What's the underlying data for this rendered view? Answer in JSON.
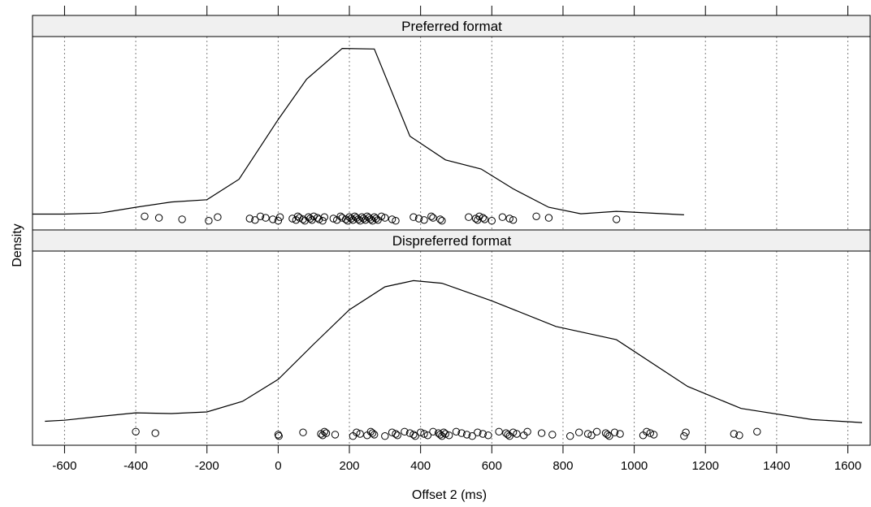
{
  "chart_data": {
    "type": "density",
    "xlabel": "Offset 2 (ms)",
    "ylabel": "Density",
    "xlim": [
      -690,
      1665
    ],
    "x_ticks": [
      -600,
      -400,
      -200,
      0,
      200,
      400,
      600,
      800,
      1000,
      1200,
      1400,
      1600
    ],
    "x_tick_labels": [
      "-600",
      "-400",
      "-200",
      "0",
      "200",
      "400",
      "600",
      "800",
      "1000",
      "1200",
      "1400",
      "1600"
    ],
    "grid": "vertical dotted at x ticks",
    "line_color": "#000000",
    "point_style": "open circle",
    "panels": [
      {
        "name": "Preferred format",
        "ylim": [
          0,
          1
        ],
        "density_curve": [
          [
            -690,
            0.016
          ],
          [
            -600,
            0.016
          ],
          [
            -500,
            0.022
          ],
          [
            -400,
            0.055
          ],
          [
            -300,
            0.085
          ],
          [
            -200,
            0.098
          ],
          [
            -110,
            0.215
          ],
          [
            0,
            0.555
          ],
          [
            80,
            0.785
          ],
          [
            180,
            0.96
          ],
          [
            270,
            0.957
          ],
          [
            370,
            0.46
          ],
          [
            470,
            0.325
          ],
          [
            570,
            0.273
          ],
          [
            660,
            0.16
          ],
          [
            760,
            0.055
          ],
          [
            850,
            0.018
          ],
          [
            950,
            0.032
          ],
          [
            1140,
            0.012
          ]
        ],
        "observations": [
          -375,
          -335,
          -270,
          -195,
          -170,
          -80,
          -65,
          -50,
          -35,
          -15,
          0,
          5,
          40,
          50,
          55,
          60,
          70,
          75,
          85,
          90,
          95,
          100,
          110,
          115,
          125,
          130,
          155,
          165,
          175,
          180,
          190,
          195,
          200,
          205,
          210,
          215,
          220,
          225,
          230,
          235,
          240,
          245,
          250,
          255,
          260,
          265,
          270,
          275,
          280,
          290,
          300,
          320,
          330,
          380,
          395,
          410,
          430,
          435,
          455,
          460,
          535,
          555,
          560,
          565,
          575,
          580,
          600,
          630,
          650,
          660,
          725,
          760,
          950
        ]
      },
      {
        "name": "Dispreferred format",
        "ylim": [
          0,
          1
        ],
        "density_curve": [
          [
            -655,
            0.062
          ],
          [
            -600,
            0.068
          ],
          [
            -500,
            0.09
          ],
          [
            -400,
            0.11
          ],
          [
            -300,
            0.106
          ],
          [
            -200,
            0.115
          ],
          [
            -100,
            0.175
          ],
          [
            0,
            0.3
          ],
          [
            100,
            0.5
          ],
          [
            200,
            0.695
          ],
          [
            300,
            0.825
          ],
          [
            380,
            0.86
          ],
          [
            460,
            0.845
          ],
          [
            600,
            0.745
          ],
          [
            780,
            0.6
          ],
          [
            950,
            0.525
          ],
          [
            1150,
            0.26
          ],
          [
            1300,
            0.135
          ],
          [
            1500,
            0.072
          ],
          [
            1640,
            0.055
          ]
        ],
        "observations": [
          -400,
          -345,
          0,
          2,
          70,
          120,
          125,
          130,
          135,
          160,
          210,
          220,
          230,
          250,
          260,
          265,
          270,
          300,
          320,
          330,
          335,
          355,
          370,
          380,
          385,
          400,
          410,
          420,
          435,
          450,
          455,
          460,
          465,
          470,
          480,
          500,
          515,
          530,
          545,
          560,
          575,
          590,
          620,
          640,
          645,
          650,
          660,
          670,
          690,
          700,
          740,
          770,
          820,
          845,
          870,
          880,
          895,
          920,
          925,
          930,
          945,
          960,
          1025,
          1035,
          1045,
          1055,
          1140,
          1145,
          1280,
          1295,
          1345
        ]
      }
    ]
  }
}
